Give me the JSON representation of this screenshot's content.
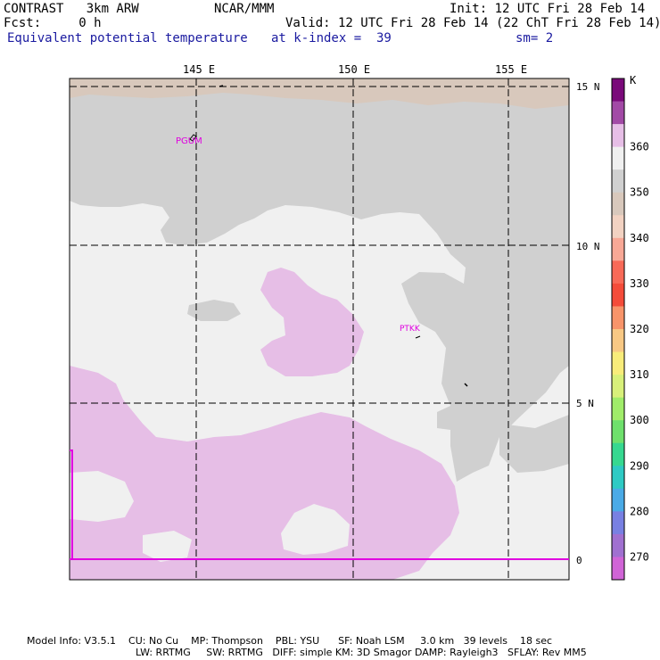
{
  "header": {
    "model": "CONTRAST   3km ARW",
    "center": "NCAR/MMM",
    "init": "Init: 12 UTC Fri 28 Feb 14",
    "fcst": "Fcst:     0 h",
    "valid": "Valid: 12 UTC Fri 28 Feb 14 (22 ChT Fri 28 Feb 14)",
    "field": "Equivalent potential temperature",
    "level": "at k-index =  39",
    "smooth": "sm= 2"
  },
  "axes": {
    "lon_labels": [
      "145 E",
      "150 E",
      "155 E"
    ],
    "lat_labels": [
      "15 N",
      "10 N",
      "5 N",
      "0"
    ]
  },
  "stations": [
    "PGUM",
    "PTKK"
  ],
  "legend": {
    "unit": "K",
    "labels": [
      "360",
      "350",
      "340",
      "330",
      "320",
      "310",
      "300",
      "290",
      "280",
      "270"
    ],
    "colors": [
      "#7a0a7a",
      "#a24aa6",
      "#e6bee6",
      "#f0f0f0",
      "#d0d0d0",
      "#d8c8bc",
      "#f2d2c2",
      "#f8a896",
      "#f86a58",
      "#f44c3a",
      "#f8946a",
      "#f8c884",
      "#f8ec7a",
      "#d8f07a",
      "#a0ec6a",
      "#6ee06c",
      "#36d890",
      "#2ecac4",
      "#4aaae6",
      "#7880e2",
      "#a070d0",
      "#d064d6"
    ]
  },
  "footer": {
    "line1": "Model Info: V3.5.1    CU: No Cu    MP: Thompson    PBL: YSU      SF: Noah LSM     3.0 km   39 levels    18 sec",
    "line2": "LW: RRTMG     SW: RRTMG   DIFF: simple KM: 3D Smagor DAMP: Rayleigh3   SFLAY: Rev MM5"
  },
  "colors": {
    "background": "#f0f0f0",
    "gray_350": "#d0d0d0",
    "tan_345": "#d8c8bc",
    "purple_365": "#e6bee6",
    "station": "#e000e0",
    "grid": "#000000"
  }
}
